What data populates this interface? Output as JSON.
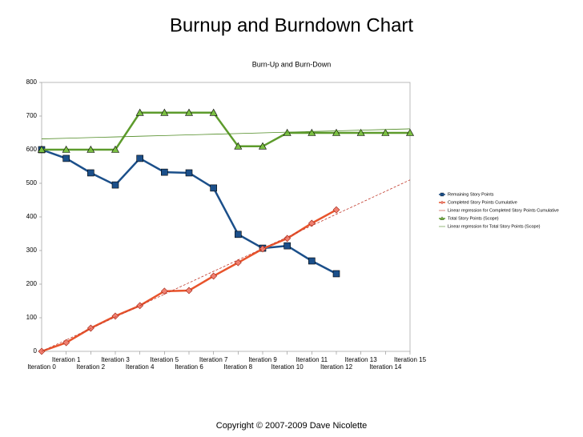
{
  "slide_title": "Burnup and Burndown Chart",
  "footer": "Copyright © 2007-2009 Dave Nicolette",
  "chart_data": {
    "type": "line",
    "title": "Burn-Up and Burn-Down",
    "categories": [
      "Iteration 0",
      "Iteration 1",
      "Iteration 2",
      "Iteration 3",
      "Iteration 4",
      "Iteration 5",
      "Iteration 6",
      "Iteration 7",
      "Iteration 8",
      "Iteration 9",
      "Iteration 10",
      "Iteration 11",
      "Iteration 12",
      "Iteration 13",
      "Iteration 14",
      "Iteration 15"
    ],
    "series": [
      {
        "name": "Remaining Story Points",
        "color": "#1b4f8a",
        "marker": "square",
        "values": [
          600,
          574,
          531,
          495,
          574,
          533,
          531,
          486,
          348,
          307,
          314,
          269,
          231,
          null,
          null,
          null
        ]
      },
      {
        "name": "Completed Story Points Cumulative",
        "color": "#e8542c",
        "marker": "diamond",
        "values": [
          0,
          26,
          69,
          105,
          136,
          179,
          181,
          224,
          264,
          305,
          336,
          381,
          421,
          null,
          null,
          null
        ]
      },
      {
        "name": "Linear regression for Completed Story Points Cumulative",
        "color": "#c0392b",
        "dashed": true,
        "values": [
          0,
          34,
          68,
          102,
          136,
          170,
          204,
          238,
          272,
          306,
          340,
          374,
          408,
          442,
          476,
          510
        ]
      },
      {
        "name": "Total Story Points (Scope)",
        "color": "#5d9b2c",
        "marker": "triangle",
        "values": [
          600,
          600,
          600,
          600,
          710,
          710,
          710,
          710,
          610,
          610,
          650,
          650,
          650,
          650,
          650,
          650
        ]
      },
      {
        "name": "Linear regression for Total Story Points (Scope)",
        "color": "#4e8a22",
        "thin": true,
        "values": [
          632,
          634,
          636,
          638,
          640,
          642,
          644,
          646,
          648,
          650,
          652,
          654,
          656,
          658,
          660,
          662
        ]
      }
    ],
    "ylim": [
      0,
      800
    ],
    "yticks": [
      0,
      100,
      200,
      300,
      400,
      500,
      600,
      700,
      800
    ],
    "grid": false,
    "legend": "right"
  }
}
